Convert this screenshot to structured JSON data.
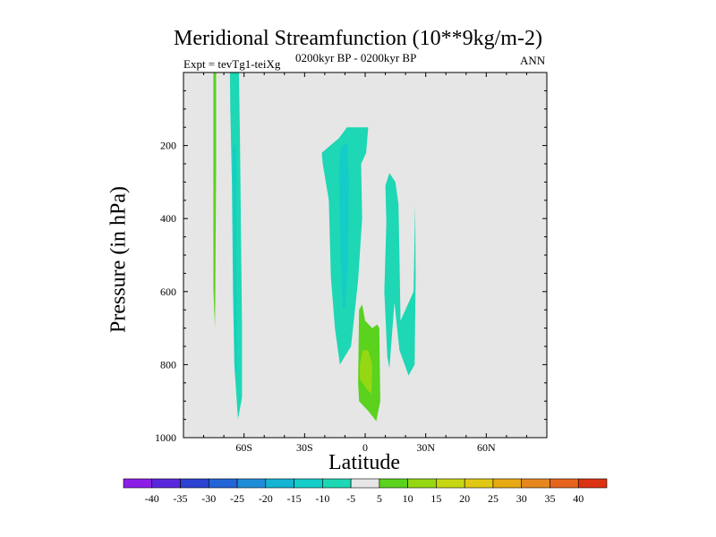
{
  "chart_data": {
    "type": "heatmap",
    "title": "Meridional Streamfunction (10**9kg/m-2)",
    "subtitle_left": "Expt = tevTg1-teiXg",
    "subtitle_center": "0200kyr BP - 0200kyr BP",
    "subtitle_right": "ANN",
    "xlabel": "Latitude",
    "ylabel": "Pressure (in hPa)",
    "xlim": [
      -90,
      90
    ],
    "ylim": [
      1000,
      0
    ],
    "x_ticks": [
      -60,
      -30,
      0,
      30,
      60
    ],
    "x_tick_labels": [
      "60S",
      "30S",
      "0",
      "30N",
      "60N"
    ],
    "y_ticks": [
      200,
      400,
      600,
      800,
      1000
    ],
    "y_tick_labels": [
      "200",
      "400",
      "600",
      "800",
      "1000"
    ],
    "colorbar": {
      "levels": [
        -40,
        -35,
        -30,
        -25,
        -20,
        -15,
        -10,
        -5,
        5,
        10,
        15,
        20,
        25,
        30,
        35,
        40
      ],
      "level_labels": [
        "-40",
        "-35",
        "-30",
        "-25",
        "-20",
        "-15",
        "-10",
        "-5",
        "5",
        "10",
        "15",
        "20",
        "25",
        "30",
        "35",
        "40"
      ],
      "colors": [
        "#8c1ee6",
        "#5a28dc",
        "#2d41d2",
        "#2364d7",
        "#1e8cd7",
        "#14b4d2",
        "#14cdc8",
        "#1ed7b4",
        "#e6e6e6",
        "#5ad21e",
        "#96d714",
        "#c8d714",
        "#e1c814",
        "#e6aa14",
        "#e6871e",
        "#e6641e",
        "#dc3214"
      ]
    },
    "regions": [
      {
        "name": "sh-high-lat-positive-strip",
        "category": "5 to 10",
        "color": "#5ad21e",
        "polygon": [
          [
            -75.2,
            0
          ],
          [
            -73.8,
            0
          ],
          [
            -73.8,
            260
          ],
          [
            -74.2,
            590
          ],
          [
            -74.4,
            700
          ],
          [
            -74.8,
            650
          ],
          [
            -75.2,
            590
          ]
        ]
      },
      {
        "name": "sh-high-lat-negative-band",
        "category": "-10 to -5",
        "color": "#1ed7b4",
        "polygon": [
          [
            -67,
            0
          ],
          [
            -62.5,
            0
          ],
          [
            -62,
            200
          ],
          [
            -61.2,
            600
          ],
          [
            -61,
            700
          ],
          [
            -61,
            890
          ],
          [
            -63,
            950
          ],
          [
            -64.8,
            800
          ],
          [
            -65.5,
            600
          ],
          [
            -66,
            300
          ],
          [
            -66.8,
            100
          ]
        ]
      },
      {
        "name": "sh-high-lat-negative-core",
        "category": "-15 to -10",
        "color": "#14cdc8",
        "polygon": [
          [
            -65.5,
            200
          ],
          [
            -64,
            200
          ],
          [
            -63.8,
            600
          ],
          [
            -63.6,
            820
          ],
          [
            -64.3,
            820
          ],
          [
            -64.8,
            600
          ]
        ]
      },
      {
        "name": "tropical-negative-cell",
        "category": "-10 to -5",
        "color": "#1ed7b4",
        "polygon": [
          [
            -21.5,
            220
          ],
          [
            -13,
            180
          ],
          [
            -9,
            150
          ],
          [
            -6.5,
            150
          ],
          [
            1.5,
            150
          ],
          [
            0.5,
            220
          ],
          [
            -2,
            250
          ],
          [
            -1.5,
            400
          ],
          [
            -3.5,
            570
          ],
          [
            -7,
            750
          ],
          [
            -12.5,
            800
          ],
          [
            -15,
            700
          ],
          [
            -17,
            560
          ],
          [
            -18,
            350
          ],
          [
            -21,
            250
          ]
        ]
      },
      {
        "name": "tropical-negative-core",
        "category": "-15 to -10",
        "color": "#14cdc8",
        "polygon": [
          [
            -12,
            200
          ],
          [
            -9,
            195
          ],
          [
            -8,
            300
          ],
          [
            -8.5,
            500
          ],
          [
            -9.8,
            640
          ],
          [
            -11,
            650
          ],
          [
            -12,
            520
          ],
          [
            -12.5,
            380
          ],
          [
            -13,
            280
          ]
        ]
      },
      {
        "name": "nh-negative-cell",
        "category": "-10 to -5",
        "color": "#1ed7b4",
        "polygon": [
          [
            10,
            310
          ],
          [
            12,
            275
          ],
          [
            15,
            300
          ],
          [
            16.5,
            360
          ],
          [
            17,
            500
          ],
          [
            17.5,
            680
          ],
          [
            24,
            600
          ],
          [
            24.8,
            360
          ],
          [
            25,
            560
          ],
          [
            24.5,
            800
          ],
          [
            21.5,
            830
          ],
          [
            17,
            760
          ],
          [
            14.5,
            630
          ],
          [
            12,
            810
          ],
          [
            11,
            780
          ],
          [
            9.5,
            600
          ],
          [
            10.5,
            410
          ]
        ]
      },
      {
        "name": "equatorial-positive-cell",
        "category": "5 to 10",
        "color": "#5ad21e",
        "polygon": [
          [
            -3,
            650
          ],
          [
            -1.5,
            635
          ],
          [
            0,
            680
          ],
          [
            3.5,
            700
          ],
          [
            6,
            690
          ],
          [
            7,
            700
          ],
          [
            7.5,
            900
          ],
          [
            5.5,
            955
          ],
          [
            2,
            930
          ],
          [
            -3,
            900
          ],
          [
            -3.5,
            850
          ]
        ]
      },
      {
        "name": "equatorial-positive-core",
        "category": "10 to 15",
        "color": "#96d714",
        "polygon": [
          [
            -1.2,
            760
          ],
          [
            1.5,
            760
          ],
          [
            3.5,
            800
          ],
          [
            3.2,
            880
          ],
          [
            1.2,
            870
          ],
          [
            -2.6,
            840
          ],
          [
            -2.6,
            800
          ]
        ]
      }
    ]
  }
}
